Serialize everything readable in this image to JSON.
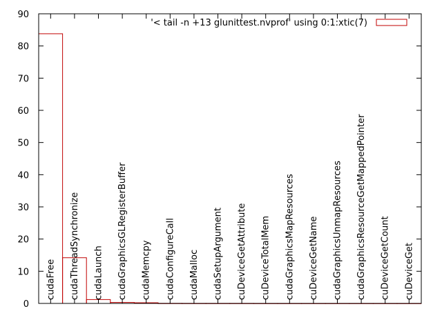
{
  "chart_data": {
    "type": "bar",
    "legend": "'< tail -n +13 glunittest.nvprof' using 0:1:xtic(7)",
    "legend_position": "top-right",
    "ylim": [
      0,
      90
    ],
    "yticks": [
      0,
      10,
      20,
      30,
      40,
      50,
      60,
      70,
      80,
      90
    ],
    "grid": false,
    "series_color": "#c00000",
    "categories": [
      "cudaFree",
      "cudaThreadSynchronize",
      "cudaLaunch",
      "cudaGraphicsGLRegisterBuffer",
      "cudaMemcpy",
      "cudaConfigureCall",
      "cudaMalloc",
      "cudaSetupArgument",
      "cuDeviceGetAttribute",
      "cuDeviceTotalMem",
      "cudaGraphicsMapResources",
      "cuDeviceGetName",
      "cudaGraphicsUnmapResources",
      "cudaGraphicsResourceGetMappedPointer",
      "cuDeviceGetCount",
      "cuDeviceGet"
    ],
    "values": [
      83.8,
      14.2,
      1.2,
      0.3,
      0.2,
      0.03,
      0.02,
      0.02,
      0.02,
      0.01,
      0.01,
      0.01,
      0.01,
      0.01,
      0.01,
      0.01
    ]
  }
}
